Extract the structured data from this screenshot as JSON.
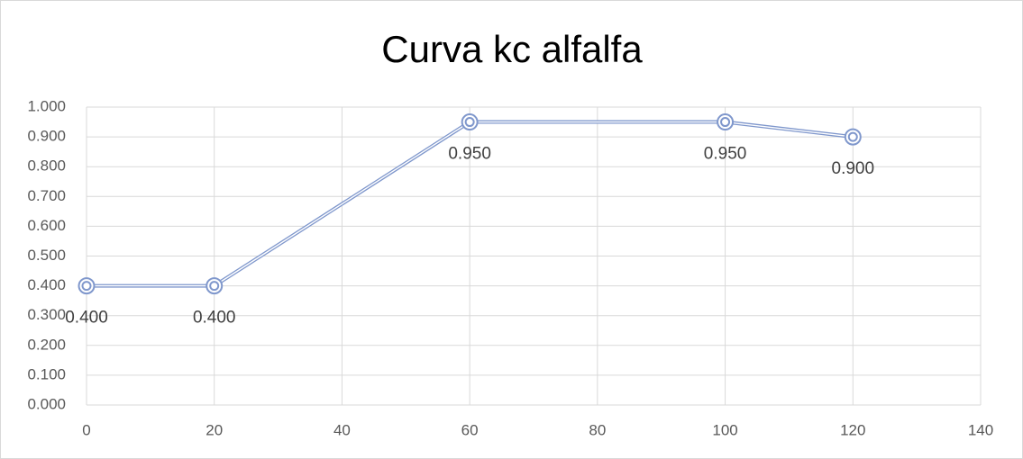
{
  "chart_data": {
    "type": "line",
    "title": "Curva kc alfalfa",
    "x": [
      0,
      20,
      60,
      100,
      120
    ],
    "series": [
      {
        "color": "#7f97cc",
        "values": [
          0.4,
          0.4,
          0.95,
          0.95,
          0.9
        ],
        "value_labels": [
          "0.400",
          "0.400",
          "0.950",
          "0.950",
          "0.900"
        ]
      }
    ],
    "xlim": [
      0,
      140
    ],
    "xticks": [
      0,
      20,
      40,
      60,
      80,
      100,
      120,
      140
    ],
    "ylim": [
      0,
      1
    ],
    "yticks": [
      {
        "value": 0,
        "label": "0.000"
      },
      {
        "value": 0.1,
        "label": "0.100"
      },
      {
        "value": 0.2,
        "label": "0.200"
      },
      {
        "value": 0.3,
        "label": "0.300"
      },
      {
        "value": 0.4,
        "label": "0.400"
      },
      {
        "value": 0.5,
        "label": "0.500"
      },
      {
        "value": 0.6,
        "label": "0.600"
      },
      {
        "value": 0.7,
        "label": "0.700"
      },
      {
        "value": 0.8,
        "label": "0.800"
      },
      {
        "value": 0.9,
        "label": "0.900"
      },
      {
        "value": 1,
        "label": "1.000"
      }
    ],
    "grid": true
  }
}
